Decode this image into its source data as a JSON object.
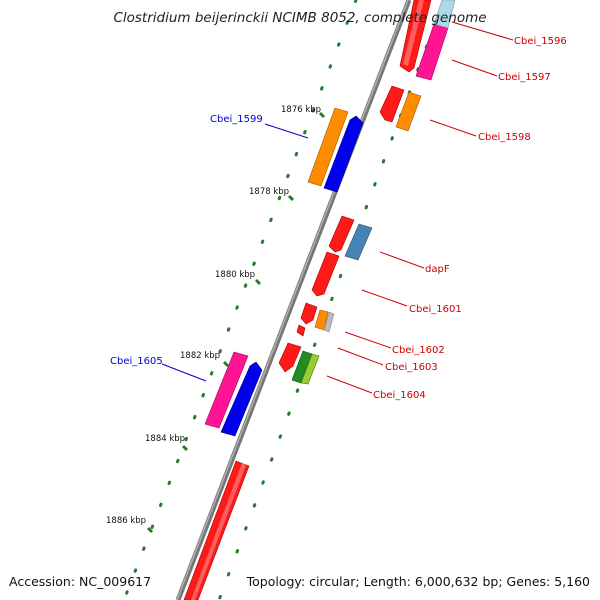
{
  "title": "Clostridium beijerinckii NCIMB 8052, complete genome",
  "footer": {
    "accession": "Accession: NC_009617",
    "summary": "Topology: circular; Length: 6,000,632 bp; Genes: 5,160"
  },
  "colors": {
    "backbone": "#888888",
    "tick": "#2a7a2a",
    "label_forward": "#cc0000",
    "label_reverse": "#0000cc"
  },
  "kbp_ticks": [
    {
      "kbp": 1876,
      "label": "1876 kbp"
    },
    {
      "kbp": 1878,
      "label": "1878 kbp"
    },
    {
      "kbp": 1880,
      "label": "1880 kbp"
    },
    {
      "kbp": 1882,
      "label": "1882 kbp"
    },
    {
      "kbp": 1884,
      "label": "1884 kbp"
    },
    {
      "kbp": 1886,
      "label": "1886 kbp"
    }
  ],
  "genes": [
    {
      "name": "Cbei_1596",
      "strand": "forward",
      "labeled": true
    },
    {
      "name": "Cbei_1597",
      "strand": "forward",
      "labeled": true
    },
    {
      "name": "Cbei_1598",
      "strand": "forward",
      "labeled": true
    },
    {
      "name": "Cbei_1599",
      "strand": "reverse",
      "labeled": true
    },
    {
      "name": "dapF",
      "strand": "forward",
      "labeled": true
    },
    {
      "name": "Cbei_1601",
      "strand": "forward",
      "labeled": true
    },
    {
      "name": "Cbei_1602",
      "strand": "forward",
      "labeled": true
    },
    {
      "name": "Cbei_1603",
      "strand": "forward",
      "labeled": true
    },
    {
      "name": "Cbei_1604",
      "strand": "forward",
      "labeled": true
    },
    {
      "name": "Cbei_1605",
      "strand": "reverse",
      "labeled": true
    }
  ]
}
